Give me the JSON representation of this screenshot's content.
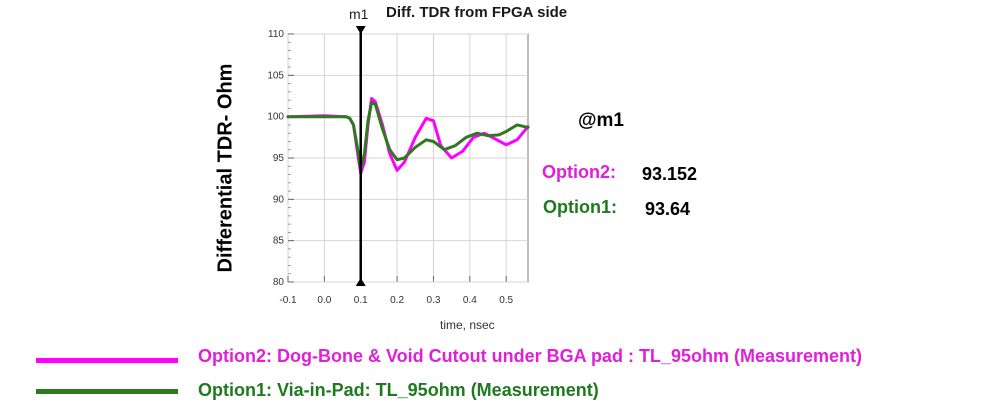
{
  "chart_data": {
    "type": "line",
    "title": "Diff. TDR from FPGA side",
    "xlabel": "time, nsec",
    "ylabel": "Differential TDR- Ohm",
    "xlim": [
      -0.1,
      0.56
    ],
    "ylim": [
      80,
      110
    ],
    "x_ticks": [
      "-0.1",
      "0.0",
      "0.1",
      "0.2",
      "0.3",
      "0.4",
      "0.5"
    ],
    "y_ticks": [
      "80",
      "85",
      "90",
      "95",
      "100",
      "105",
      "110"
    ],
    "grid": true,
    "marker": {
      "label": "m1",
      "x": 0.1
    },
    "series": [
      {
        "name": "Option2:  Dog-Bone & Void Cutout under BGA pad : TL_95ohm (Measurement)",
        "color": "#ff00ff",
        "x": [
          -0.1,
          0.0,
          0.06,
          0.07,
          0.08,
          0.09,
          0.1,
          0.11,
          0.12,
          0.13,
          0.14,
          0.16,
          0.18,
          0.2,
          0.22,
          0.25,
          0.28,
          0.3,
          0.32,
          0.35,
          0.38,
          0.41,
          0.44,
          0.47,
          0.5,
          0.53,
          0.56
        ],
        "y": [
          100.0,
          100.1,
          100.0,
          99.8,
          99.0,
          96.0,
          93.15,
          94.5,
          99.0,
          102.2,
          101.8,
          99.0,
          95.5,
          93.5,
          94.5,
          97.5,
          99.8,
          99.5,
          96.5,
          95.0,
          95.8,
          97.5,
          98.0,
          97.3,
          96.6,
          97.2,
          98.8
        ]
      },
      {
        "name": "Option1:  Via-in-Pad: TL_95ohm (Measurement)",
        "color": "#2e7a1e",
        "x": [
          -0.1,
          0.0,
          0.06,
          0.07,
          0.08,
          0.09,
          0.1,
          0.11,
          0.12,
          0.13,
          0.14,
          0.16,
          0.18,
          0.2,
          0.22,
          0.25,
          0.28,
          0.3,
          0.33,
          0.36,
          0.39,
          0.42,
          0.45,
          0.48,
          0.5,
          0.53,
          0.56
        ],
        "y": [
          100.0,
          100.0,
          100.0,
          99.8,
          99.0,
          96.5,
          93.64,
          95.5,
          99.5,
          101.7,
          101.5,
          98.5,
          96.0,
          94.8,
          95.0,
          96.3,
          97.2,
          97.0,
          96.0,
          96.5,
          97.5,
          98.0,
          97.7,
          97.8,
          98.2,
          99.0,
          98.7
        ]
      }
    ]
  },
  "marker_readout": {
    "heading": "@m1",
    "rows": [
      {
        "name": "Option2:",
        "value": "93.152",
        "color": "#e020d8"
      },
      {
        "name": "Option1:",
        "value": "93.64",
        "color": "#1e7a1e"
      }
    ]
  },
  "legend": [
    {
      "text": "Option2:  Dog-Bone & Void Cutout under BGA pad : TL_95ohm (Measurement)",
      "color": "#ff00ff"
    },
    {
      "text": "Option1:  Via-in-Pad: TL_95ohm (Measurement)",
      "color": "#2e7a1e"
    }
  ]
}
